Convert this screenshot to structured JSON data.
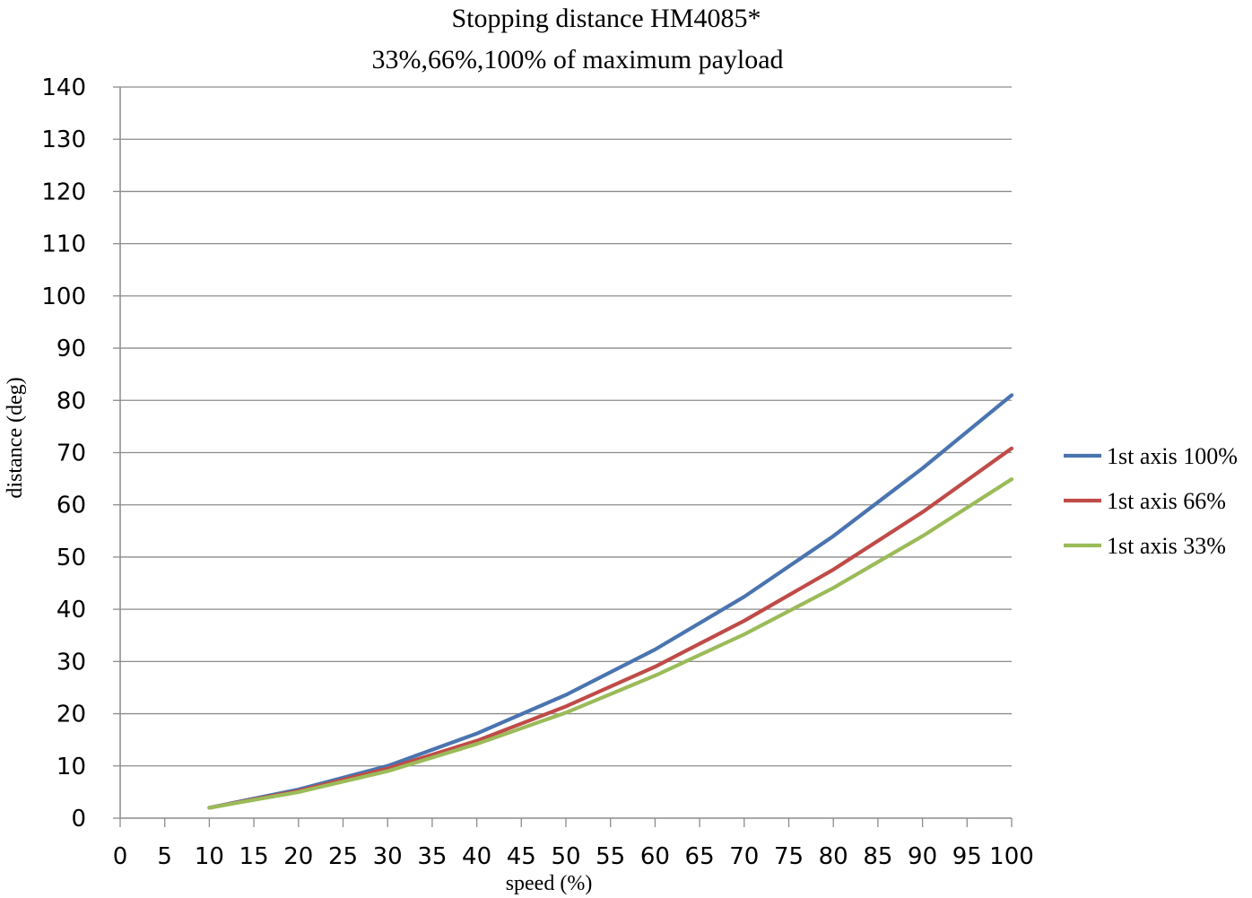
{
  "chart_data": {
    "type": "line",
    "title": "Stopping distance HM4085*",
    "subtitle": "33%,66%,100% of maximum payload",
    "xlabel": "speed (%)",
    "ylabel": "distance (deg)",
    "x": [
      10,
      20,
      30,
      40,
      50,
      60,
      70,
      80,
      90,
      100
    ],
    "xlim": [
      0,
      100
    ],
    "ylim": [
      0,
      140
    ],
    "xticks": [
      "0",
      "5",
      "10",
      "15",
      "20",
      "25",
      "30",
      "35",
      "40",
      "45",
      "50",
      "55",
      "60",
      "65",
      "70",
      "75",
      "80",
      "85",
      "90",
      "95",
      "100"
    ],
    "yticks": [
      "0",
      "10",
      "20",
      "30",
      "40",
      "50",
      "60",
      "70",
      "80",
      "90",
      "100",
      "110",
      "120",
      "130",
      "140"
    ],
    "grid": "horizontal",
    "legend_position": "right",
    "series": [
      {
        "name": "1st axis 100%",
        "color": "#4a74b0",
        "values": [
          2,
          5.5,
          10,
          16.2,
          23.6,
          32.3,
          42.4,
          54,
          67,
          81
        ]
      },
      {
        "name": "1st axis 66%",
        "color": "#bf4b48",
        "values": [
          2,
          5.2,
          9.5,
          14.8,
          21.4,
          29,
          37.8,
          47.6,
          58.6,
          70.8
        ]
      },
      {
        "name": "1st axis 33%",
        "color": "#9bbb59",
        "values": [
          2,
          5,
          9,
          14.2,
          20.2,
          27.3,
          35.2,
          44.1,
          54,
          64.9
        ]
      }
    ]
  }
}
